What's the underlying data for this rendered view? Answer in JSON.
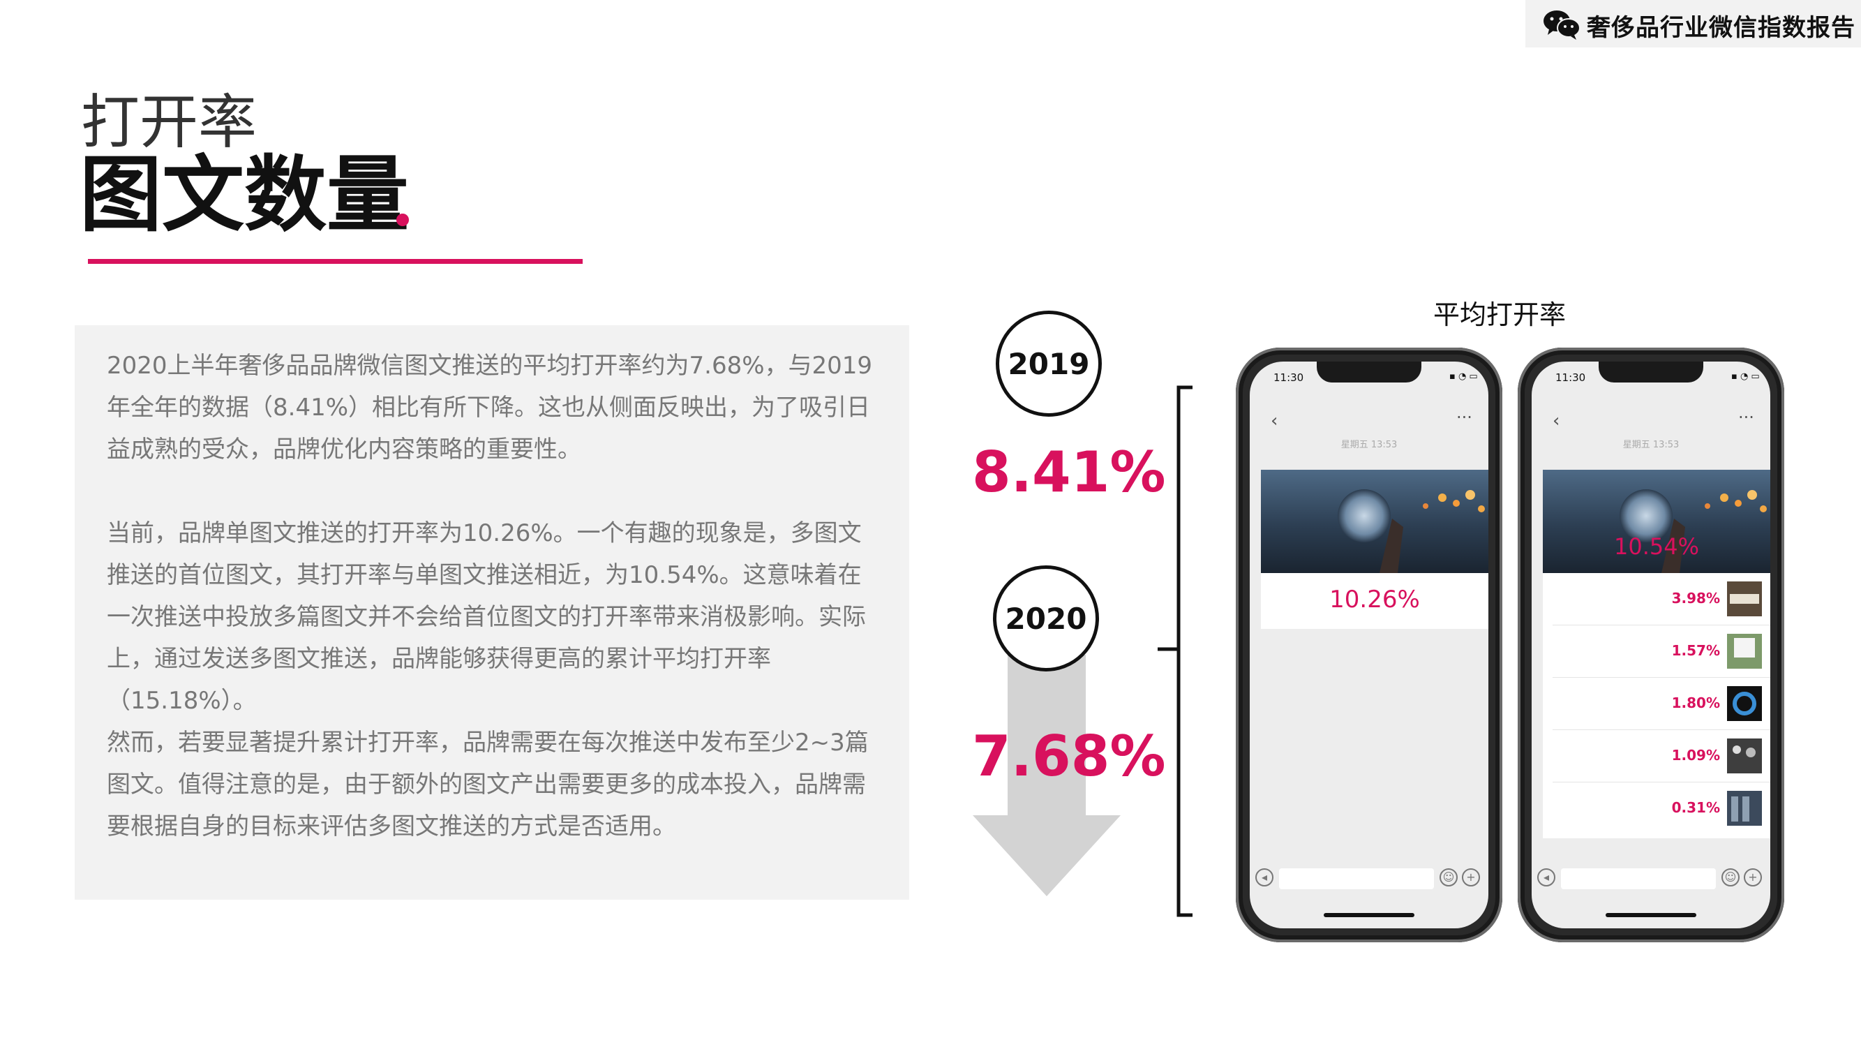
{
  "header": {
    "report_name": "奢侈品行业微信指数报告",
    "logo_icon": "wechat-icon"
  },
  "titles": {
    "subtitle": "打开率",
    "main": "图文数量"
  },
  "body": {
    "paragraphs": [
      "2020上半年奢侈品品牌微信图文推送的平均打开率约为7.68%，与2019年全年的数据（8.41%）相比有所下降。这也从侧面反映出，为了吸引日益成熟的受众，品牌优化内容策略的重要性。",
      "当前，品牌单图文推送的打开率为10.26%。一个有趣的现象是，多图文推送的首位图文，其打开率与单图文推送相近，为10.54%。这意味着在一次推送中投放多篇图文并不会给首位图文的打开率带来消极影响。实际上，通过发送多图文推送，品牌能够获得更高的累计平均打开率（15.18%）。",
      "然而，若要显著提升累计打开率，品牌需要在每次推送中发布至少2~3篇图文。值得注意的是，由于额外的图文产出需要更多的成本投入，品牌需要根据自身的目标来评估多图文推送的方式是否适用。"
    ]
  },
  "comparison": {
    "year_2019": "2019",
    "rate_2019": "8.41%",
    "year_2020": "2020",
    "rate_2020": "7.68%"
  },
  "chart_title": "平均打开率",
  "phones": {
    "time": "11:30",
    "date": "星期五 13:53",
    "single": {
      "rate": "10.26%"
    },
    "multi": {
      "first_rate": "10.54%",
      "rows": [
        {
          "value": "3.98%"
        },
        {
          "value": "1.57%"
        },
        {
          "value": "1.80%"
        },
        {
          "value": "1.09%"
        },
        {
          "value": "0.31%"
        }
      ]
    }
  },
  "colors": {
    "accent": "#d8115d",
    "panel": "#f2f2f2",
    "arrow": "#d3d3d3"
  }
}
